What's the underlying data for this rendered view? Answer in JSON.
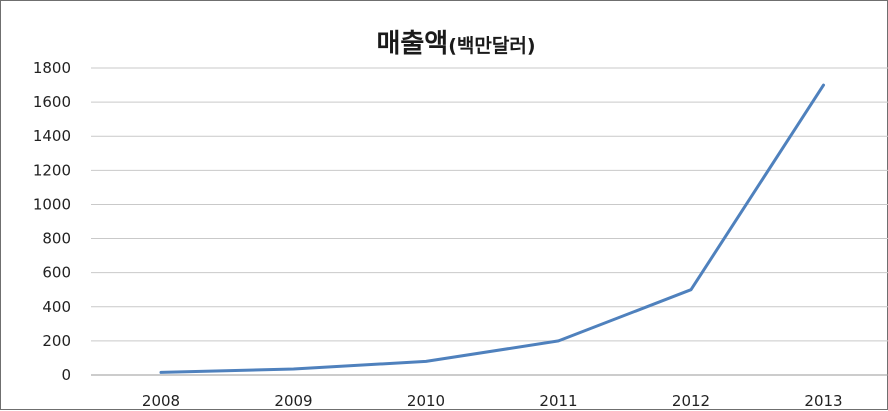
{
  "chart_data": {
    "type": "line",
    "title": "매출액",
    "title_unit": "(백만달러)",
    "x": [
      "2008",
      "2009",
      "2010",
      "2011",
      "2012",
      "2013"
    ],
    "series": [
      {
        "values": [
          15,
          35,
          80,
          200,
          500,
          1700
        ],
        "color": "#4f81bd"
      }
    ],
    "ylim": [
      0,
      1800
    ],
    "yticks": [
      0,
      200,
      400,
      600,
      800,
      1000,
      1200,
      1400,
      1600,
      1800
    ],
    "grid": true,
    "legend": "none"
  }
}
